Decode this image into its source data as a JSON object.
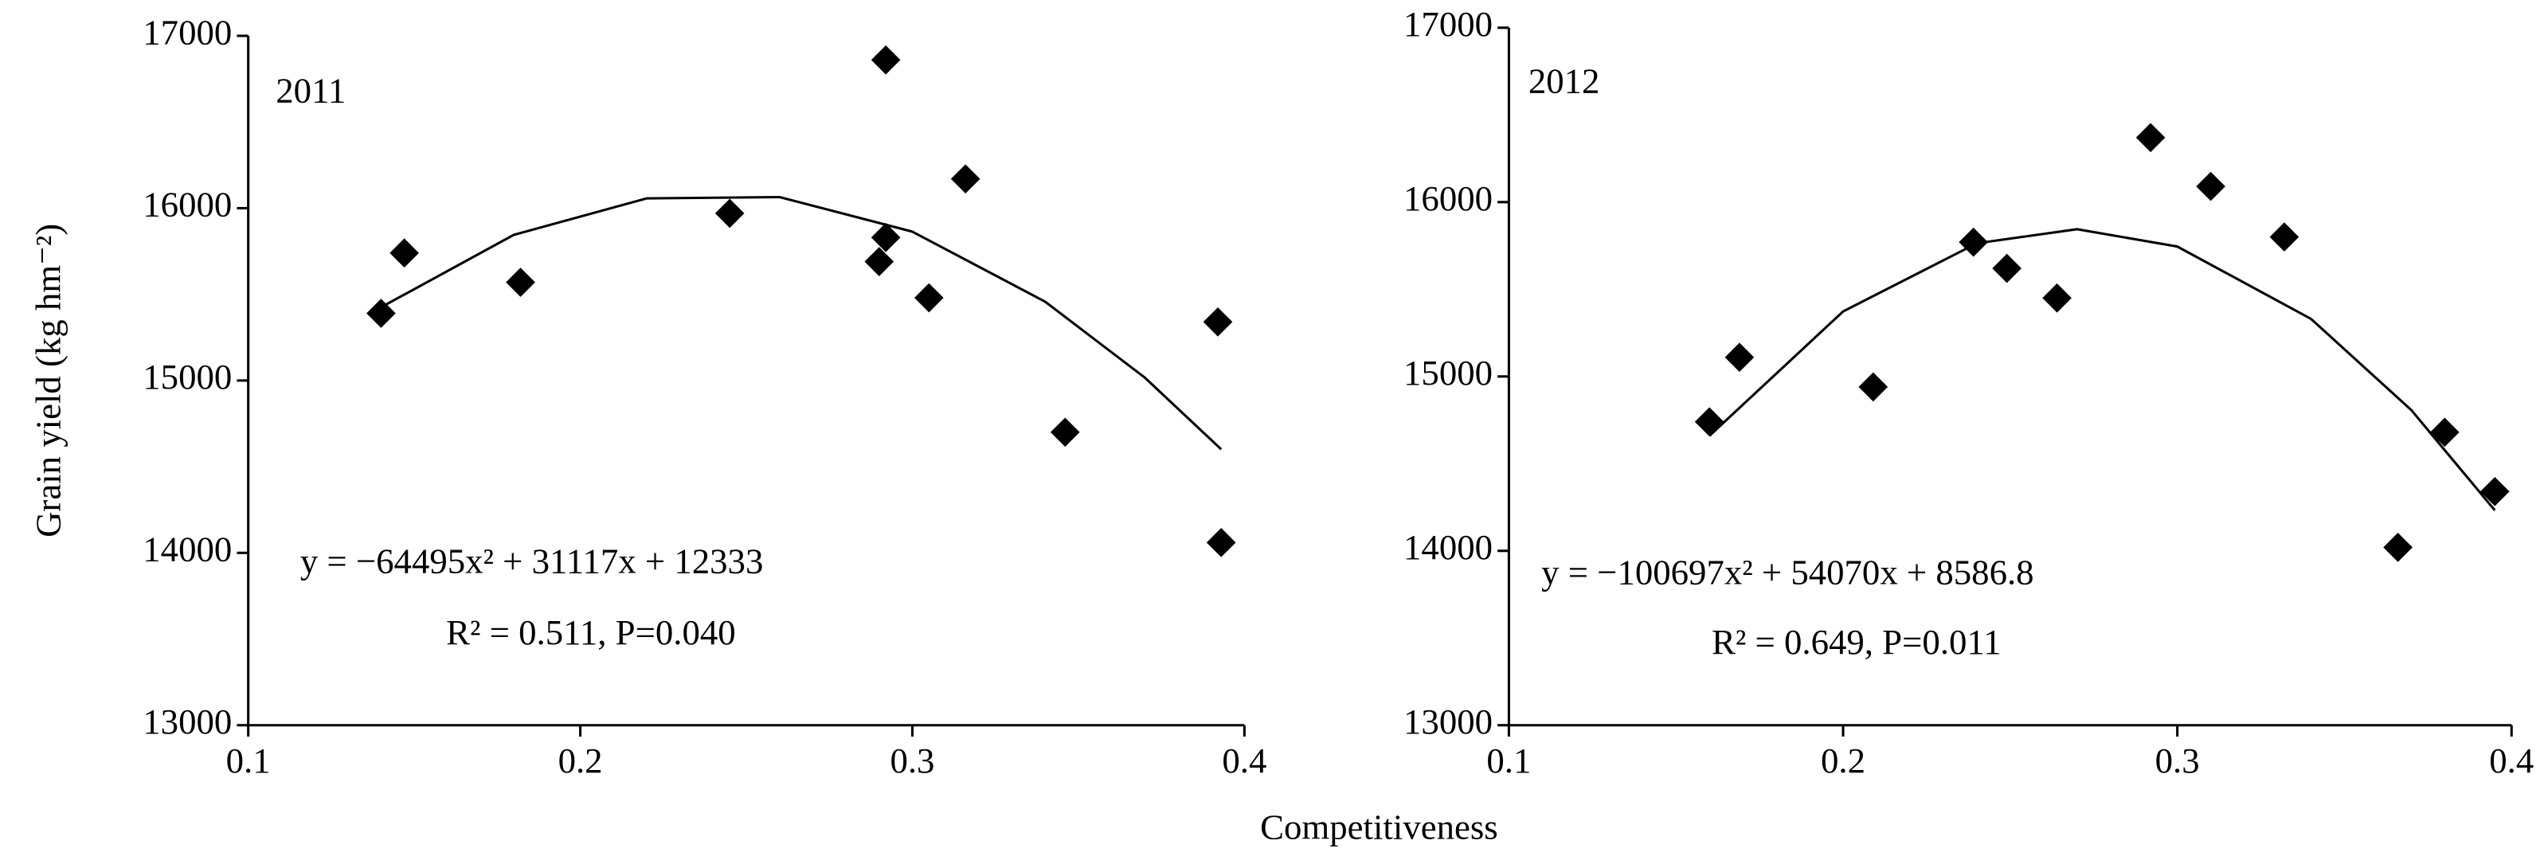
{
  "chart_data": [
    {
      "type": "scatter",
      "title": "2011",
      "ylabel": "Grain yield (kg hm⁻²)",
      "xlabel": "Competitiveness",
      "annotations": [
        "y = −64495x² + 31117x + 12333",
        "R² = 0.511, P=0.040"
      ],
      "xlim": [
        0.1,
        0.4
      ],
      "xticks": [
        0.1,
        0.2,
        0.3,
        0.4
      ],
      "ylim": [
        13000,
        17000
      ],
      "yticks": [
        13000,
        14000,
        15000,
        16000,
        17000
      ],
      "color": "#000000",
      "x": [
        0.14,
        0.147,
        0.182,
        0.245,
        0.29,
        0.292,
        0.292,
        0.305,
        0.316,
        0.346,
        0.392,
        0.393
      ],
      "values": [
        15390,
        15740,
        15570,
        15970,
        15690,
        15830,
        16860,
        15480,
        16170,
        14700,
        15340,
        14060
      ],
      "fit": {
        "x": [
          0.14,
          0.18,
          0.22,
          0.26,
          0.3,
          0.34,
          0.37,
          0.393
        ],
        "values": [
          15425,
          15845,
          16057,
          16064,
          15864,
          15457,
          15017,
          14601
        ]
      }
    },
    {
      "type": "scatter",
      "title": "2012",
      "annotations": [
        "y = −100697x² + 54070x + 8586.8",
        "R² = 0.649, P=0.011"
      ],
      "xlim": [
        0.1,
        0.4
      ],
      "xticks": [
        0.1,
        0.2,
        0.3,
        0.4
      ],
      "ylim": [
        13000,
        17000
      ],
      "yticks": [
        13000,
        14000,
        15000,
        16000,
        17000
      ],
      "color": "#000000",
      "x": [
        0.16,
        0.169,
        0.209,
        0.239,
        0.249,
        0.264,
        0.292,
        0.31,
        0.332,
        0.366,
        0.38,
        0.395
      ],
      "values": [
        14740,
        15110,
        14940,
        15770,
        15620,
        15450,
        16370,
        16090,
        15800,
        14020,
        14680,
        14340
      ],
      "fit": {
        "x": [
          0.16,
          0.2,
          0.24,
          0.27,
          0.3,
          0.34,
          0.37,
          0.395
        ],
        "values": [
          14660,
          15373,
          15764,
          15845,
          15745,
          15330,
          14807,
          14233
        ]
      }
    }
  ]
}
